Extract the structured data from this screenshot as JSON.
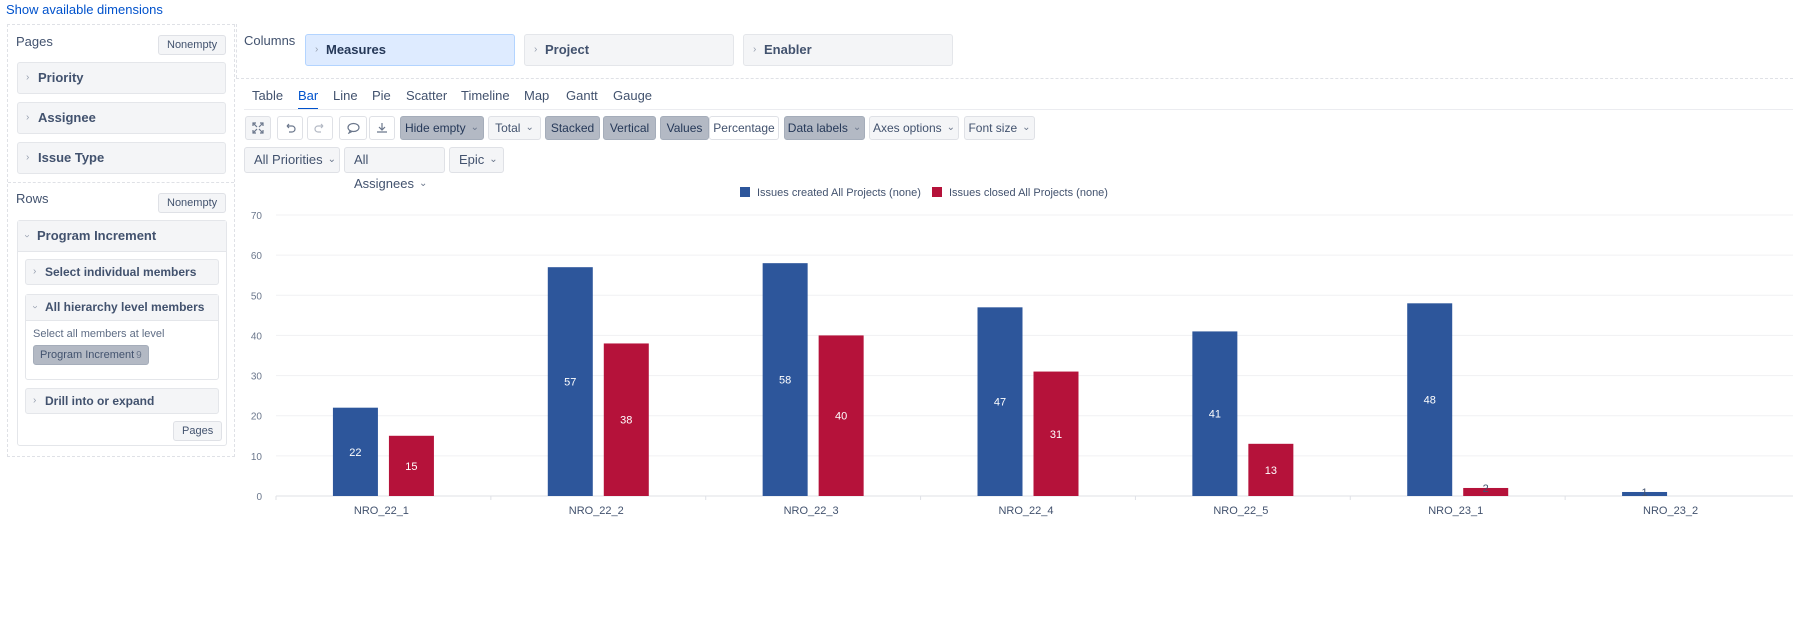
{
  "top_link": "Show available dimensions",
  "pages": {
    "title": "Pages",
    "nonempty_label": "Nonempty",
    "dimensions": [
      "Priority",
      "Assignee",
      "Issue Type"
    ]
  },
  "rows": {
    "title": "Rows",
    "nonempty_label": "Nonempty",
    "dimension": "Program Increment",
    "select_individual": "Select individual members",
    "all_hierarchy": "All hierarchy level members",
    "select_all_label": "Select all members at level",
    "level_pill": "Program Increment",
    "level_count": "9",
    "drill": "Drill into or expand",
    "pages_button": "Pages"
  },
  "columns": {
    "title": "Columns",
    "items": [
      "Measures",
      "Project",
      "Enabler"
    ]
  },
  "tabs": [
    "Table",
    "Bar",
    "Line",
    "Pie",
    "Scatter",
    "Timeline",
    "Map",
    "Gantt",
    "Gauge"
  ],
  "active_tab": "Bar",
  "toolbar": {
    "hide_empty": "Hide empty",
    "total": "Total",
    "stacked": "Stacked",
    "vertical": "Vertical",
    "values": "Values",
    "percentage": "Percentage",
    "data_labels": "Data labels",
    "axes_options": "Axes options",
    "font_size": "Font size"
  },
  "filters": [
    "All Priorities",
    "All Assignees",
    "Epic"
  ],
  "colors": {
    "created": "#2d569b",
    "closed": "#b5123a",
    "accent": "#0052cc"
  },
  "chart_data": {
    "type": "bar",
    "categories": [
      "NRO_22_1",
      "NRO_22_2",
      "NRO_22_3",
      "NRO_22_4",
      "NRO_22_5",
      "NRO_23_1",
      "NRO_23_2"
    ],
    "series": [
      {
        "name": "Issues created All Projects (none)",
        "values": [
          22,
          57,
          58,
          47,
          41,
          48,
          1
        ]
      },
      {
        "name": "Issues closed All Projects (none)",
        "values": [
          15,
          38,
          40,
          31,
          13,
          2,
          null
        ]
      }
    ],
    "ylim": [
      0,
      70
    ],
    "yticks": [
      0,
      10,
      20,
      30,
      40,
      50,
      60,
      70
    ],
    "grid": true,
    "legend": "top-center",
    "data_labels": true
  }
}
